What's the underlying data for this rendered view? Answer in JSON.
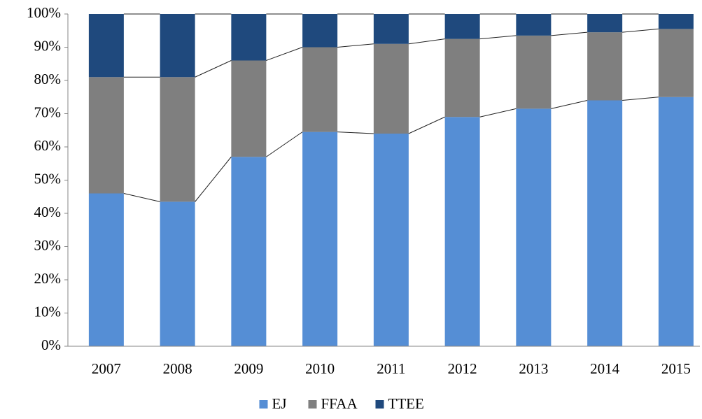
{
  "chart_data": {
    "type": "stacked_bar",
    "categories": [
      "2007",
      "2008",
      "2009",
      "2010",
      "2011",
      "2012",
      "2013",
      "2014",
      "2015"
    ],
    "series": [
      {
        "name": "EJ",
        "color": "#558ed5",
        "values": [
          46,
          43.5,
          57,
          64.5,
          64,
          69,
          71.5,
          74,
          75
        ]
      },
      {
        "name": "FFAA",
        "color": "#7f7f7f",
        "values": [
          35,
          37.5,
          29,
          25.5,
          27,
          23.5,
          22,
          20.5,
          20.5
        ]
      },
      {
        "name": "TTEE",
        "color": "#1f497d",
        "values": [
          19,
          19,
          14,
          10,
          9,
          7.5,
          6.5,
          5.5,
          4.5
        ]
      }
    ],
    "ylim": [
      0,
      100
    ],
    "yticks": [
      {
        "value": 0,
        "label": "0%"
      },
      {
        "value": 10,
        "label": "10%"
      },
      {
        "value": 20,
        "label": "20%"
      },
      {
        "value": 30,
        "label": "30%"
      },
      {
        "value": 40,
        "label": "40%"
      },
      {
        "value": 50,
        "label": "50%"
      },
      {
        "value": 60,
        "label": "60%"
      },
      {
        "value": 70,
        "label": "70%"
      },
      {
        "value": 80,
        "label": "80%"
      },
      {
        "value": 90,
        "label": "90%"
      },
      {
        "value": 100,
        "label": "100%"
      }
    ],
    "grid": false,
    "series_lines": true,
    "legend": "bottom"
  }
}
